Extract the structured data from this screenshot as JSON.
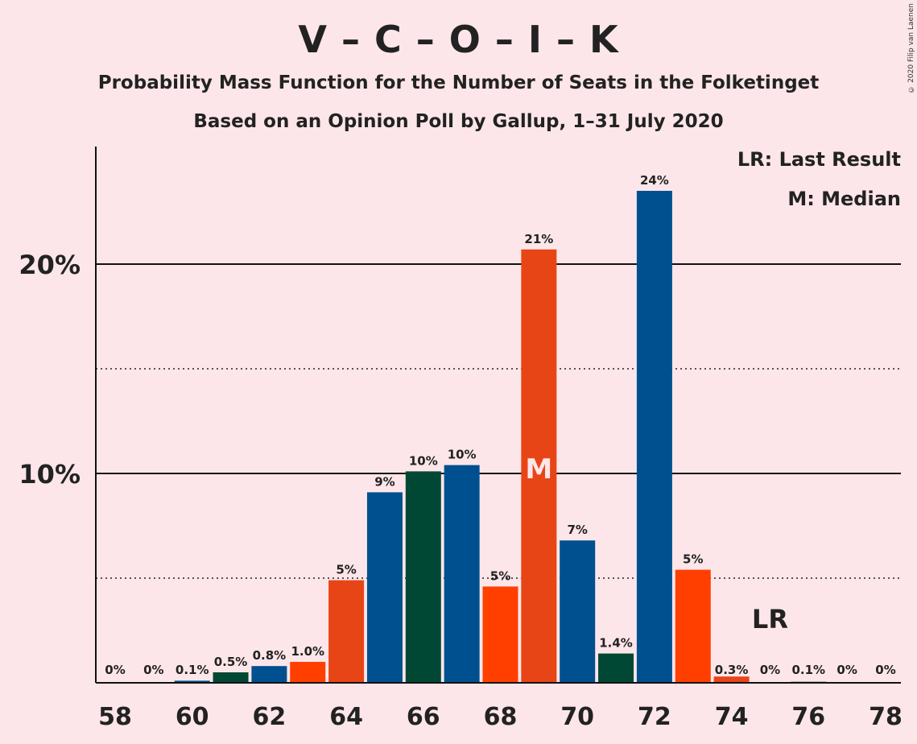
{
  "header": {
    "title": "V – C – O – I – K",
    "subtitle": "Probability Mass Function for the Number of Seats in the Folketinget",
    "subtitle2": "Based on an Opinion Poll by Gallup, 1–31 July 2020",
    "copyright": "© 2020 Filip van Laenen"
  },
  "legend": {
    "last_result": "LR: Last Result",
    "median": "M: Median"
  },
  "markers": {
    "median_label": "M",
    "median_seat": 69,
    "last_result_label": "LR",
    "last_result_seat": 75
  },
  "colors": {
    "blue": "#00508f",
    "dark_green": "#004834",
    "orange": "#e84516",
    "red_orange": "#ff3f00",
    "background": "#fde6e9"
  },
  "chart_data": {
    "type": "bar",
    "xlabel": "",
    "ylabel": "",
    "ylim": [
      0,
      25.5
    ],
    "y_solid_gridlines": [
      10,
      20
    ],
    "y_dotted_gridlines": [
      5,
      15
    ],
    "y_ticks": [
      {
        "value": 10,
        "label": "10%"
      },
      {
        "value": 20,
        "label": "20%"
      }
    ],
    "x_ticks": [
      58,
      60,
      62,
      64,
      66,
      68,
      70,
      72,
      74,
      76,
      78
    ],
    "categories": [
      58,
      59,
      60,
      61,
      62,
      63,
      64,
      65,
      66,
      67,
      68,
      69,
      70,
      71,
      72,
      73,
      74,
      75,
      76,
      77,
      78
    ],
    "values": [
      0,
      0,
      0.1,
      0.5,
      0.8,
      1.0,
      4.9,
      9.1,
      10.1,
      10.4,
      4.6,
      20.7,
      6.8,
      1.4,
      23.5,
      5.4,
      0.3,
      0,
      0.05,
      0,
      0
    ],
    "labels": [
      "0%",
      "0%",
      "0.1%",
      "0.5%",
      "0.8%",
      "1.0%",
      "5%",
      "9%",
      "10%",
      "10%",
      "5%",
      "21%",
      "7%",
      "1.4%",
      "24%",
      "5%",
      "0.3%",
      "0%",
      "0.1%",
      "0%",
      "0%"
    ],
    "bar_colors": [
      "blue",
      "dark_green",
      "blue",
      "dark_green",
      "blue",
      "red_orange",
      "orange",
      "blue",
      "dark_green",
      "blue",
      "red_orange",
      "orange",
      "blue",
      "dark_green",
      "blue",
      "red_orange",
      "orange",
      "blue",
      "dark_green",
      "blue",
      "red_orange"
    ]
  }
}
